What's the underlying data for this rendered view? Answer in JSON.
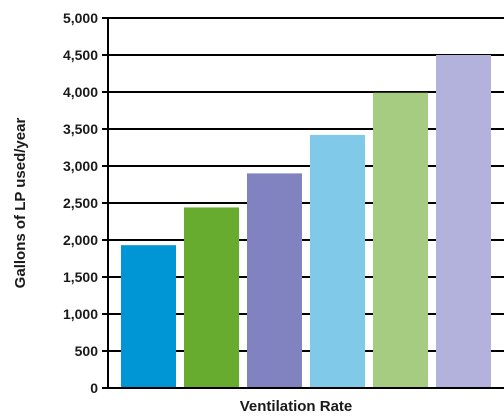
{
  "chart_data": {
    "type": "bar",
    "title": "",
    "xlabel": "Ventilation Rate",
    "ylabel": "Gallons of LP used/year",
    "ylim": [
      0,
      5000
    ],
    "yticks": [
      0,
      500,
      1000,
      1500,
      2000,
      2500,
      3000,
      3500,
      4000,
      4500,
      5000
    ],
    "ytick_labels": [
      "0",
      "500",
      "1,000",
      "1,500",
      "2,000",
      "2,500",
      "3,000",
      "3,500",
      "4,000",
      "4,500",
      "5,000"
    ],
    "categories": [
      "",
      "",
      "",
      "",
      "",
      ""
    ],
    "values": [
      1930,
      2440,
      2900,
      3420,
      3990,
      4500
    ],
    "bar_colors": [
      "#0096d6",
      "#67ac2e",
      "#8083c0",
      "#80c9e9",
      "#a6cc82",
      "#b3b2dd"
    ],
    "grid": true,
    "legend": "none"
  }
}
